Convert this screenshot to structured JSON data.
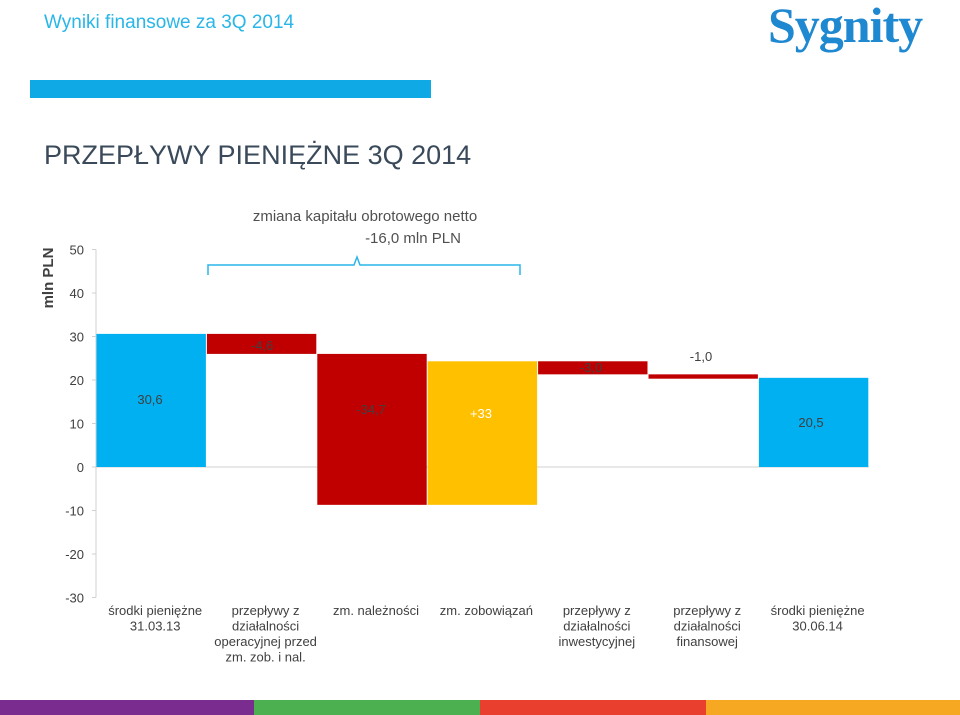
{
  "header": {
    "title": "Wyniki finansowe za 3Q 2014",
    "logo_text": "Sygnity"
  },
  "slide": {
    "title": "PRZEPŁYWY PIENIĘŻNE 3Q 2014"
  },
  "colors": {
    "start_end": "#00B0F0",
    "negative": "#C00000",
    "positive": "#FFC000",
    "accent_blue": "#0FA9E6",
    "title_blue": "#29B6E8",
    "stripes": [
      "#7B2C8F",
      "#4CAF50",
      "#E83F2E",
      "#F7A823"
    ]
  },
  "chart_data": {
    "type": "bar",
    "subtype": "waterfall",
    "ylabel": "mln PLN",
    "ylim": [
      -30,
      50
    ],
    "yticks": [
      50,
      40,
      30,
      20,
      10,
      0,
      -10,
      -20,
      -30
    ],
    "annotation": {
      "line1": "zmiana kapitału obrotowego netto",
      "line2": "-16,0 mln PLN"
    },
    "categories": [
      [
        "środki pieniężne",
        "31.03.13"
      ],
      [
        "przepływy z",
        "działalności",
        "operacyjnej przed",
        "zm. zob. i nal."
      ],
      [
        "zm. należności"
      ],
      [
        "zm. zobowiązań"
      ],
      [
        "przepływy z",
        "działalności",
        "inwestycyjnej"
      ],
      [
        "przepływy z",
        "działalności",
        "finansowej"
      ],
      [
        "środki pieniężne",
        "30.06.14"
      ]
    ],
    "bars": [
      {
        "start": 0,
        "end": 30.6,
        "color": "start_end",
        "label": "30,6"
      },
      {
        "start": 30.6,
        "end": 26.0,
        "color": "negative",
        "label": "-4,6"
      },
      {
        "start": 26.0,
        "end": -8.7,
        "color": "negative",
        "label": "-34,7"
      },
      {
        "start": -8.7,
        "end": 24.3,
        "color": "positive",
        "label": "+33"
      },
      {
        "start": 24.3,
        "end": 21.3,
        "color": "negative",
        "label": "-3,0"
      },
      {
        "start": 21.3,
        "end": 20.3,
        "color": "negative",
        "label": "-1,0"
      },
      {
        "start": 0,
        "end": 20.5,
        "color": "start_end",
        "label": "20,5"
      }
    ]
  }
}
